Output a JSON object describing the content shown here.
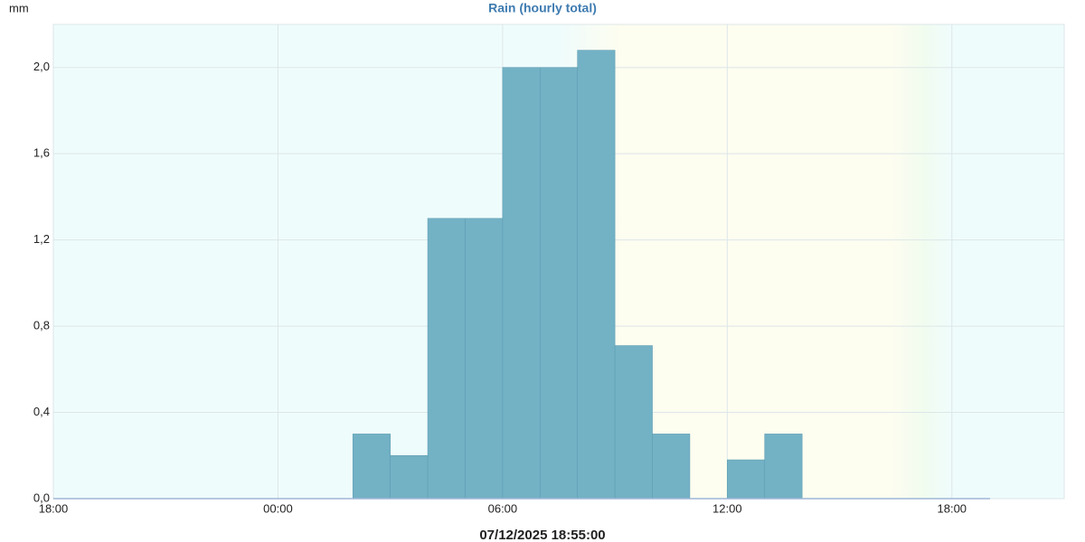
{
  "chart_data": {
    "type": "histogram",
    "title": "Rain (hourly total)",
    "y_label": "mm",
    "x_label": "07/12/2025 18:55:00",
    "bins": [
      8,
      9,
      10,
      11,
      12,
      13,
      14,
      15,
      16,
      17,
      18,
      19,
      20
    ],
    "values": [
      0.3,
      0.2,
      1.3,
      1.3,
      2.0,
      2.0,
      2.08,
      0.71,
      0.3,
      0,
      0.18,
      0.3
    ],
    "color": "#73b1c5",
    "xlim": [
      0,
      27
    ],
    "xticks": [
      {
        "value": 0,
        "label": "18:00"
      },
      {
        "value": 6,
        "label": "00:00"
      },
      {
        "value": 12,
        "label": "06:00"
      },
      {
        "value": 18,
        "label": "12:00"
      },
      {
        "value": 24,
        "label": "18:00"
      }
    ],
    "ylim": [
      0,
      2.2
    ],
    "yticks": [
      {
        "value": 0,
        "label": "0,0"
      },
      {
        "value": 0.4,
        "label": "0,4"
      },
      {
        "value": 0.8,
        "label": "0,8"
      },
      {
        "value": 1.2,
        "label": "1,2"
      },
      {
        "value": 1.6,
        "label": "1,6"
      },
      {
        "value": 2.0,
        "label": "2,0"
      }
    ],
    "grid": true
  }
}
